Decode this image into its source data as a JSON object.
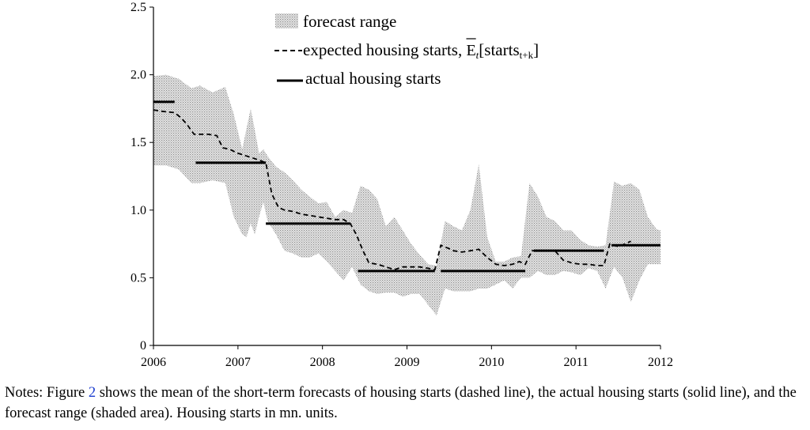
{
  "chart_data": {
    "type": "line",
    "title": "",
    "xlabel": "",
    "ylabel": "",
    "xlim": [
      2006,
      2012
    ],
    "ylim": [
      0,
      2.5
    ],
    "x_ticks": [
      "2006",
      "2007",
      "2008",
      "2009",
      "2010",
      "2011",
      "2012"
    ],
    "y_ticks": [
      "0",
      "0.5",
      "1.0",
      "1.5",
      "2.0",
      "2.5"
    ],
    "grid": false,
    "legend_position": "top-center",
    "legend": {
      "range_label": "forecast range",
      "expected_prefix": "expected housing starts, ",
      "expected_E": "E",
      "expected_sub_t": "t",
      "expected_open": "[starts",
      "expected_sub_tk": "t+k",
      "expected_close": "]",
      "actual_label": "actual housing starts"
    },
    "series": [
      {
        "name": "forecast range",
        "kind": "band",
        "x": [
          2006.0,
          2006.15,
          2006.3,
          2006.45,
          2006.55,
          2006.7,
          2006.85,
          2006.95,
          2007.05,
          2007.1,
          2007.15,
          2007.2,
          2007.25,
          2007.3,
          2007.35,
          2007.45,
          2007.55,
          2007.65,
          2007.75,
          2007.85,
          2007.95,
          2008.05,
          2008.15,
          2008.25,
          2008.35,
          2008.45,
          2008.55,
          2008.65,
          2008.75,
          2008.85,
          2008.95,
          2009.05,
          2009.15,
          2009.25,
          2009.35,
          2009.45,
          2009.55,
          2009.65,
          2009.75,
          2009.85,
          2009.95,
          2010.05,
          2010.15,
          2010.25,
          2010.35,
          2010.45,
          2010.55,
          2010.65,
          2010.75,
          2010.85,
          2010.95,
          2011.05,
          2011.15,
          2011.25,
          2011.35,
          2011.45,
          2011.55,
          2011.65,
          2011.75,
          2011.85,
          2011.95,
          2012.0
        ],
        "upper": [
          1.99,
          2.0,
          1.97,
          1.9,
          1.92,
          1.87,
          1.91,
          1.71,
          1.45,
          1.6,
          1.75,
          1.59,
          1.42,
          1.45,
          1.4,
          1.32,
          1.28,
          1.22,
          1.15,
          1.1,
          1.05,
          1.06,
          0.95,
          1.0,
          0.98,
          1.18,
          1.15,
          1.08,
          0.88,
          0.95,
          0.85,
          0.75,
          0.67,
          0.6,
          0.59,
          0.92,
          0.88,
          0.85,
          1.0,
          1.34,
          0.8,
          0.62,
          0.62,
          0.65,
          0.66,
          1.2,
          1.1,
          0.95,
          0.92,
          0.85,
          0.85,
          0.78,
          0.74,
          0.73,
          0.74,
          1.21,
          1.18,
          1.2,
          1.15,
          0.95,
          0.86,
          0.85
        ],
        "lower": [
          1.33,
          1.33,
          1.3,
          1.2,
          1.2,
          1.22,
          1.2,
          0.95,
          0.82,
          0.8,
          0.9,
          0.82,
          0.95,
          1.06,
          0.92,
          0.82,
          0.7,
          0.68,
          0.65,
          0.65,
          0.68,
          0.62,
          0.55,
          0.48,
          0.58,
          0.45,
          0.4,
          0.38,
          0.39,
          0.39,
          0.36,
          0.38,
          0.38,
          0.3,
          0.22,
          0.42,
          0.4,
          0.4,
          0.4,
          0.42,
          0.42,
          0.45,
          0.48,
          0.42,
          0.5,
          0.5,
          0.55,
          0.52,
          0.52,
          0.55,
          0.54,
          0.52,
          0.57,
          0.55,
          0.42,
          0.58,
          0.5,
          0.32,
          0.48,
          0.6,
          0.6,
          0.6
        ]
      },
      {
        "name": "expected housing starts",
        "kind": "dashed",
        "x": [
          2006.0,
          2006.1,
          2006.25,
          2006.33,
          2006.4,
          2006.48,
          2006.55,
          2006.65,
          2006.75,
          2006.82,
          2006.9,
          2007.0,
          2007.1,
          2007.25,
          2007.33,
          2007.4,
          2007.48,
          2007.55,
          2007.65,
          2007.75,
          2007.85,
          2007.95,
          2008.05,
          2008.15,
          2008.25,
          2008.33,
          2008.4,
          2008.48,
          2008.55,
          2008.65,
          2008.75,
          2008.85,
          2008.95,
          2009.05,
          2009.15,
          2009.25,
          2009.33,
          2009.4,
          2009.48,
          2009.55,
          2009.65,
          2009.75,
          2009.85,
          2009.95,
          2010.05,
          2010.15,
          2010.25,
          2010.33,
          2010.4,
          2010.48,
          2010.55,
          2010.65,
          2010.75,
          2010.85,
          2010.95,
          2011.05,
          2011.15,
          2011.25,
          2011.33,
          2011.4,
          2011.5,
          2011.58,
          2011.65
        ],
        "y": [
          1.74,
          1.73,
          1.72,
          1.68,
          1.63,
          1.56,
          1.56,
          1.56,
          1.55,
          1.46,
          1.45,
          1.42,
          1.4,
          1.37,
          1.35,
          1.12,
          1.02,
          1.0,
          0.99,
          0.97,
          0.96,
          0.95,
          0.94,
          0.93,
          0.93,
          0.9,
          0.82,
          0.7,
          0.61,
          0.6,
          0.58,
          0.56,
          0.58,
          0.58,
          0.58,
          0.57,
          0.56,
          0.74,
          0.72,
          0.7,
          0.69,
          0.7,
          0.71,
          0.65,
          0.6,
          0.59,
          0.6,
          0.62,
          0.6,
          0.7,
          0.7,
          0.7,
          0.7,
          0.63,
          0.61,
          0.6,
          0.6,
          0.59,
          0.59,
          0.75,
          0.73,
          0.75,
          0.77
        ]
      },
      {
        "name": "actual housing starts",
        "kind": "solid-steps",
        "segments": [
          {
            "x0": 2006.0,
            "x1": 2006.25,
            "y": 1.8
          },
          {
            "x0": 2006.5,
            "x1": 2007.33,
            "y": 1.35
          },
          {
            "x0": 2007.33,
            "x1": 2008.33,
            "y": 0.9
          },
          {
            "x0": 2008.42,
            "x1": 2009.33,
            "y": 0.55
          },
          {
            "x0": 2009.4,
            "x1": 2010.4,
            "y": 0.55
          },
          {
            "x0": 2010.5,
            "x1": 2011.33,
            "y": 0.7
          },
          {
            "x0": 2011.42,
            "x1": 2012.0,
            "y": 0.74
          }
        ]
      }
    ]
  },
  "notes": {
    "prefix": "Notes: Figure ",
    "ref": "2",
    "body": " shows the mean of the short-term forecasts of housing starts (dashed line), the actual housing starts (solid line), and the forecast range (shaded area). Housing starts in mn. units."
  }
}
